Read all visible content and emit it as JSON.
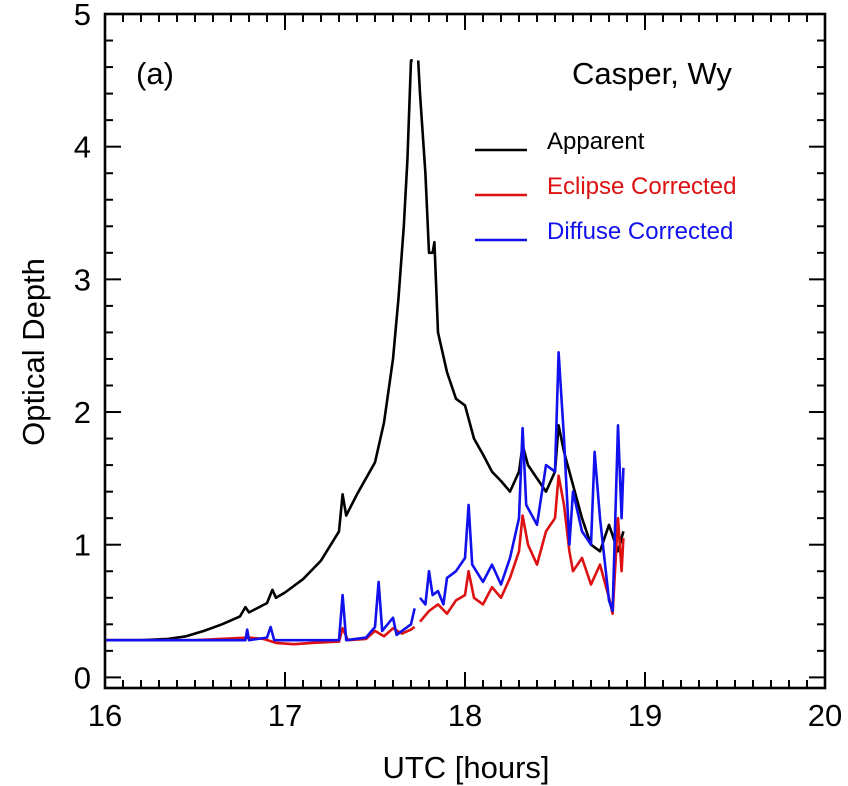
{
  "chart_data": {
    "type": "line",
    "xlabel": "UTC [hours]",
    "ylabel": "Optical Depth",
    "xlim": [
      16,
      20
    ],
    "ylim": [
      -0.08,
      5
    ],
    "xticks": [
      16,
      17,
      18,
      19,
      20
    ],
    "yticks": [
      0,
      1,
      2,
      3,
      4,
      5
    ],
    "annotations": {
      "panel": "(a)",
      "site": "Casper, Wy"
    },
    "legend": {
      "placement": "top-right"
    },
    "grid": false,
    "series": [
      {
        "name": "Apparent",
        "color": "#000000",
        "points": [
          [
            16.0,
            0.28
          ],
          [
            16.2,
            0.28
          ],
          [
            16.35,
            0.29
          ],
          [
            16.45,
            0.31
          ],
          [
            16.55,
            0.35
          ],
          [
            16.65,
            0.4
          ],
          [
            16.75,
            0.46
          ],
          [
            16.78,
            0.53
          ],
          [
            16.8,
            0.49
          ],
          [
            16.9,
            0.56
          ],
          [
            16.93,
            0.66
          ],
          [
            16.95,
            0.6
          ],
          [
            17.0,
            0.64
          ],
          [
            17.1,
            0.74
          ],
          [
            17.2,
            0.88
          ],
          [
            17.3,
            1.1
          ],
          [
            17.32,
            1.38
          ],
          [
            17.34,
            1.22
          ],
          [
            17.4,
            1.38
          ],
          [
            17.5,
            1.62
          ],
          [
            17.55,
            1.92
          ],
          [
            17.6,
            2.4
          ],
          [
            17.63,
            2.85
          ],
          [
            17.66,
            3.4
          ],
          [
            17.68,
            3.9
          ],
          [
            17.7,
            4.65
          ],
          [
            17.71,
            4.65
          ],
          [
            17.72,
            null
          ],
          [
            17.74,
            4.65
          ],
          [
            17.75,
            4.4
          ],
          [
            17.78,
            3.8
          ],
          [
            17.8,
            3.2
          ],
          [
            17.82,
            3.2
          ],
          [
            17.83,
            3.28
          ],
          [
            17.85,
            2.6
          ],
          [
            17.9,
            2.3
          ],
          [
            17.95,
            2.1
          ],
          [
            18.0,
            2.05
          ],
          [
            18.05,
            1.8
          ],
          [
            18.1,
            1.68
          ],
          [
            18.15,
            1.55
          ],
          [
            18.2,
            1.48
          ],
          [
            18.25,
            1.4
          ],
          [
            18.3,
            1.55
          ],
          [
            18.32,
            1.75
          ],
          [
            18.35,
            1.6
          ],
          [
            18.4,
            1.5
          ],
          [
            18.45,
            1.4
          ],
          [
            18.5,
            1.55
          ],
          [
            18.52,
            1.9
          ],
          [
            18.55,
            1.7
          ],
          [
            18.6,
            1.45
          ],
          [
            18.65,
            1.2
          ],
          [
            18.7,
            1.0
          ],
          [
            18.75,
            0.95
          ],
          [
            18.8,
            1.15
          ],
          [
            18.85,
            0.95
          ],
          [
            18.88,
            1.1
          ]
        ]
      },
      {
        "name": "Eclipse Corrected",
        "color": "#dd1111",
        "points": [
          [
            16.0,
            0.28
          ],
          [
            16.5,
            0.28
          ],
          [
            16.8,
            0.3
          ],
          [
            16.88,
            0.29
          ],
          [
            16.95,
            0.26
          ],
          [
            17.05,
            0.25
          ],
          [
            17.15,
            0.26
          ],
          [
            17.3,
            0.27
          ],
          [
            17.32,
            0.37
          ],
          [
            17.35,
            0.28
          ],
          [
            17.45,
            0.29
          ],
          [
            17.5,
            0.35
          ],
          [
            17.55,
            0.31
          ],
          [
            17.6,
            0.37
          ],
          [
            17.65,
            0.33
          ],
          [
            17.7,
            0.36
          ],
          [
            17.72,
            0.38
          ],
          [
            17.74,
            null
          ],
          [
            17.75,
            0.42
          ],
          [
            17.8,
            0.5
          ],
          [
            17.85,
            0.55
          ],
          [
            17.9,
            0.48
          ],
          [
            17.95,
            0.58
          ],
          [
            18.0,
            0.62
          ],
          [
            18.02,
            0.8
          ],
          [
            18.05,
            0.6
          ],
          [
            18.1,
            0.55
          ],
          [
            18.15,
            0.68
          ],
          [
            18.2,
            0.6
          ],
          [
            18.25,
            0.75
          ],
          [
            18.3,
            0.95
          ],
          [
            18.32,
            1.22
          ],
          [
            18.35,
            1.0
          ],
          [
            18.4,
            0.85
          ],
          [
            18.45,
            1.1
          ],
          [
            18.5,
            1.2
          ],
          [
            18.52,
            1.52
          ],
          [
            18.55,
            1.3
          ],
          [
            18.58,
            0.95
          ],
          [
            18.6,
            0.8
          ],
          [
            18.65,
            0.9
          ],
          [
            18.7,
            0.7
          ],
          [
            18.75,
            0.85
          ],
          [
            18.8,
            0.6
          ],
          [
            18.82,
            0.48
          ],
          [
            18.85,
            1.2
          ],
          [
            18.87,
            0.8
          ],
          [
            18.88,
            1.05
          ]
        ]
      },
      {
        "name": "Diffuse Corrected",
        "color": "#1111ee",
        "points": [
          [
            16.0,
            0.28
          ],
          [
            16.5,
            0.28
          ],
          [
            16.78,
            0.28
          ],
          [
            16.79,
            0.36
          ],
          [
            16.8,
            0.28
          ],
          [
            16.9,
            0.3
          ],
          [
            16.92,
            0.38
          ],
          [
            16.94,
            0.28
          ],
          [
            17.0,
            0.28
          ],
          [
            17.3,
            0.28
          ],
          [
            17.32,
            0.62
          ],
          [
            17.34,
            0.28
          ],
          [
            17.45,
            0.3
          ],
          [
            17.5,
            0.38
          ],
          [
            17.52,
            0.72
          ],
          [
            17.54,
            0.35
          ],
          [
            17.6,
            0.45
          ],
          [
            17.62,
            0.32
          ],
          [
            17.7,
            0.4
          ],
          [
            17.72,
            0.52
          ],
          [
            17.74,
            null
          ],
          [
            17.75,
            0.6
          ],
          [
            17.78,
            0.55
          ],
          [
            17.8,
            0.8
          ],
          [
            17.82,
            0.62
          ],
          [
            17.85,
            0.65
          ],
          [
            17.88,
            0.55
          ],
          [
            17.9,
            0.75
          ],
          [
            17.95,
            0.8
          ],
          [
            18.0,
            0.9
          ],
          [
            18.02,
            1.3
          ],
          [
            18.04,
            0.85
          ],
          [
            18.1,
            0.72
          ],
          [
            18.15,
            0.85
          ],
          [
            18.2,
            0.7
          ],
          [
            18.25,
            0.9
          ],
          [
            18.3,
            1.2
          ],
          [
            18.32,
            1.88
          ],
          [
            18.34,
            1.3
          ],
          [
            18.4,
            1.15
          ],
          [
            18.45,
            1.6
          ],
          [
            18.5,
            1.55
          ],
          [
            18.52,
            2.45
          ],
          [
            18.55,
            1.8
          ],
          [
            18.58,
            1.0
          ],
          [
            18.6,
            1.4
          ],
          [
            18.65,
            1.1
          ],
          [
            18.7,
            1.0
          ],
          [
            18.72,
            1.7
          ],
          [
            18.75,
            1.2
          ],
          [
            18.8,
            0.58
          ],
          [
            18.82,
            0.5
          ],
          [
            18.85,
            1.9
          ],
          [
            18.87,
            1.2
          ],
          [
            18.88,
            1.58
          ]
        ]
      }
    ]
  }
}
